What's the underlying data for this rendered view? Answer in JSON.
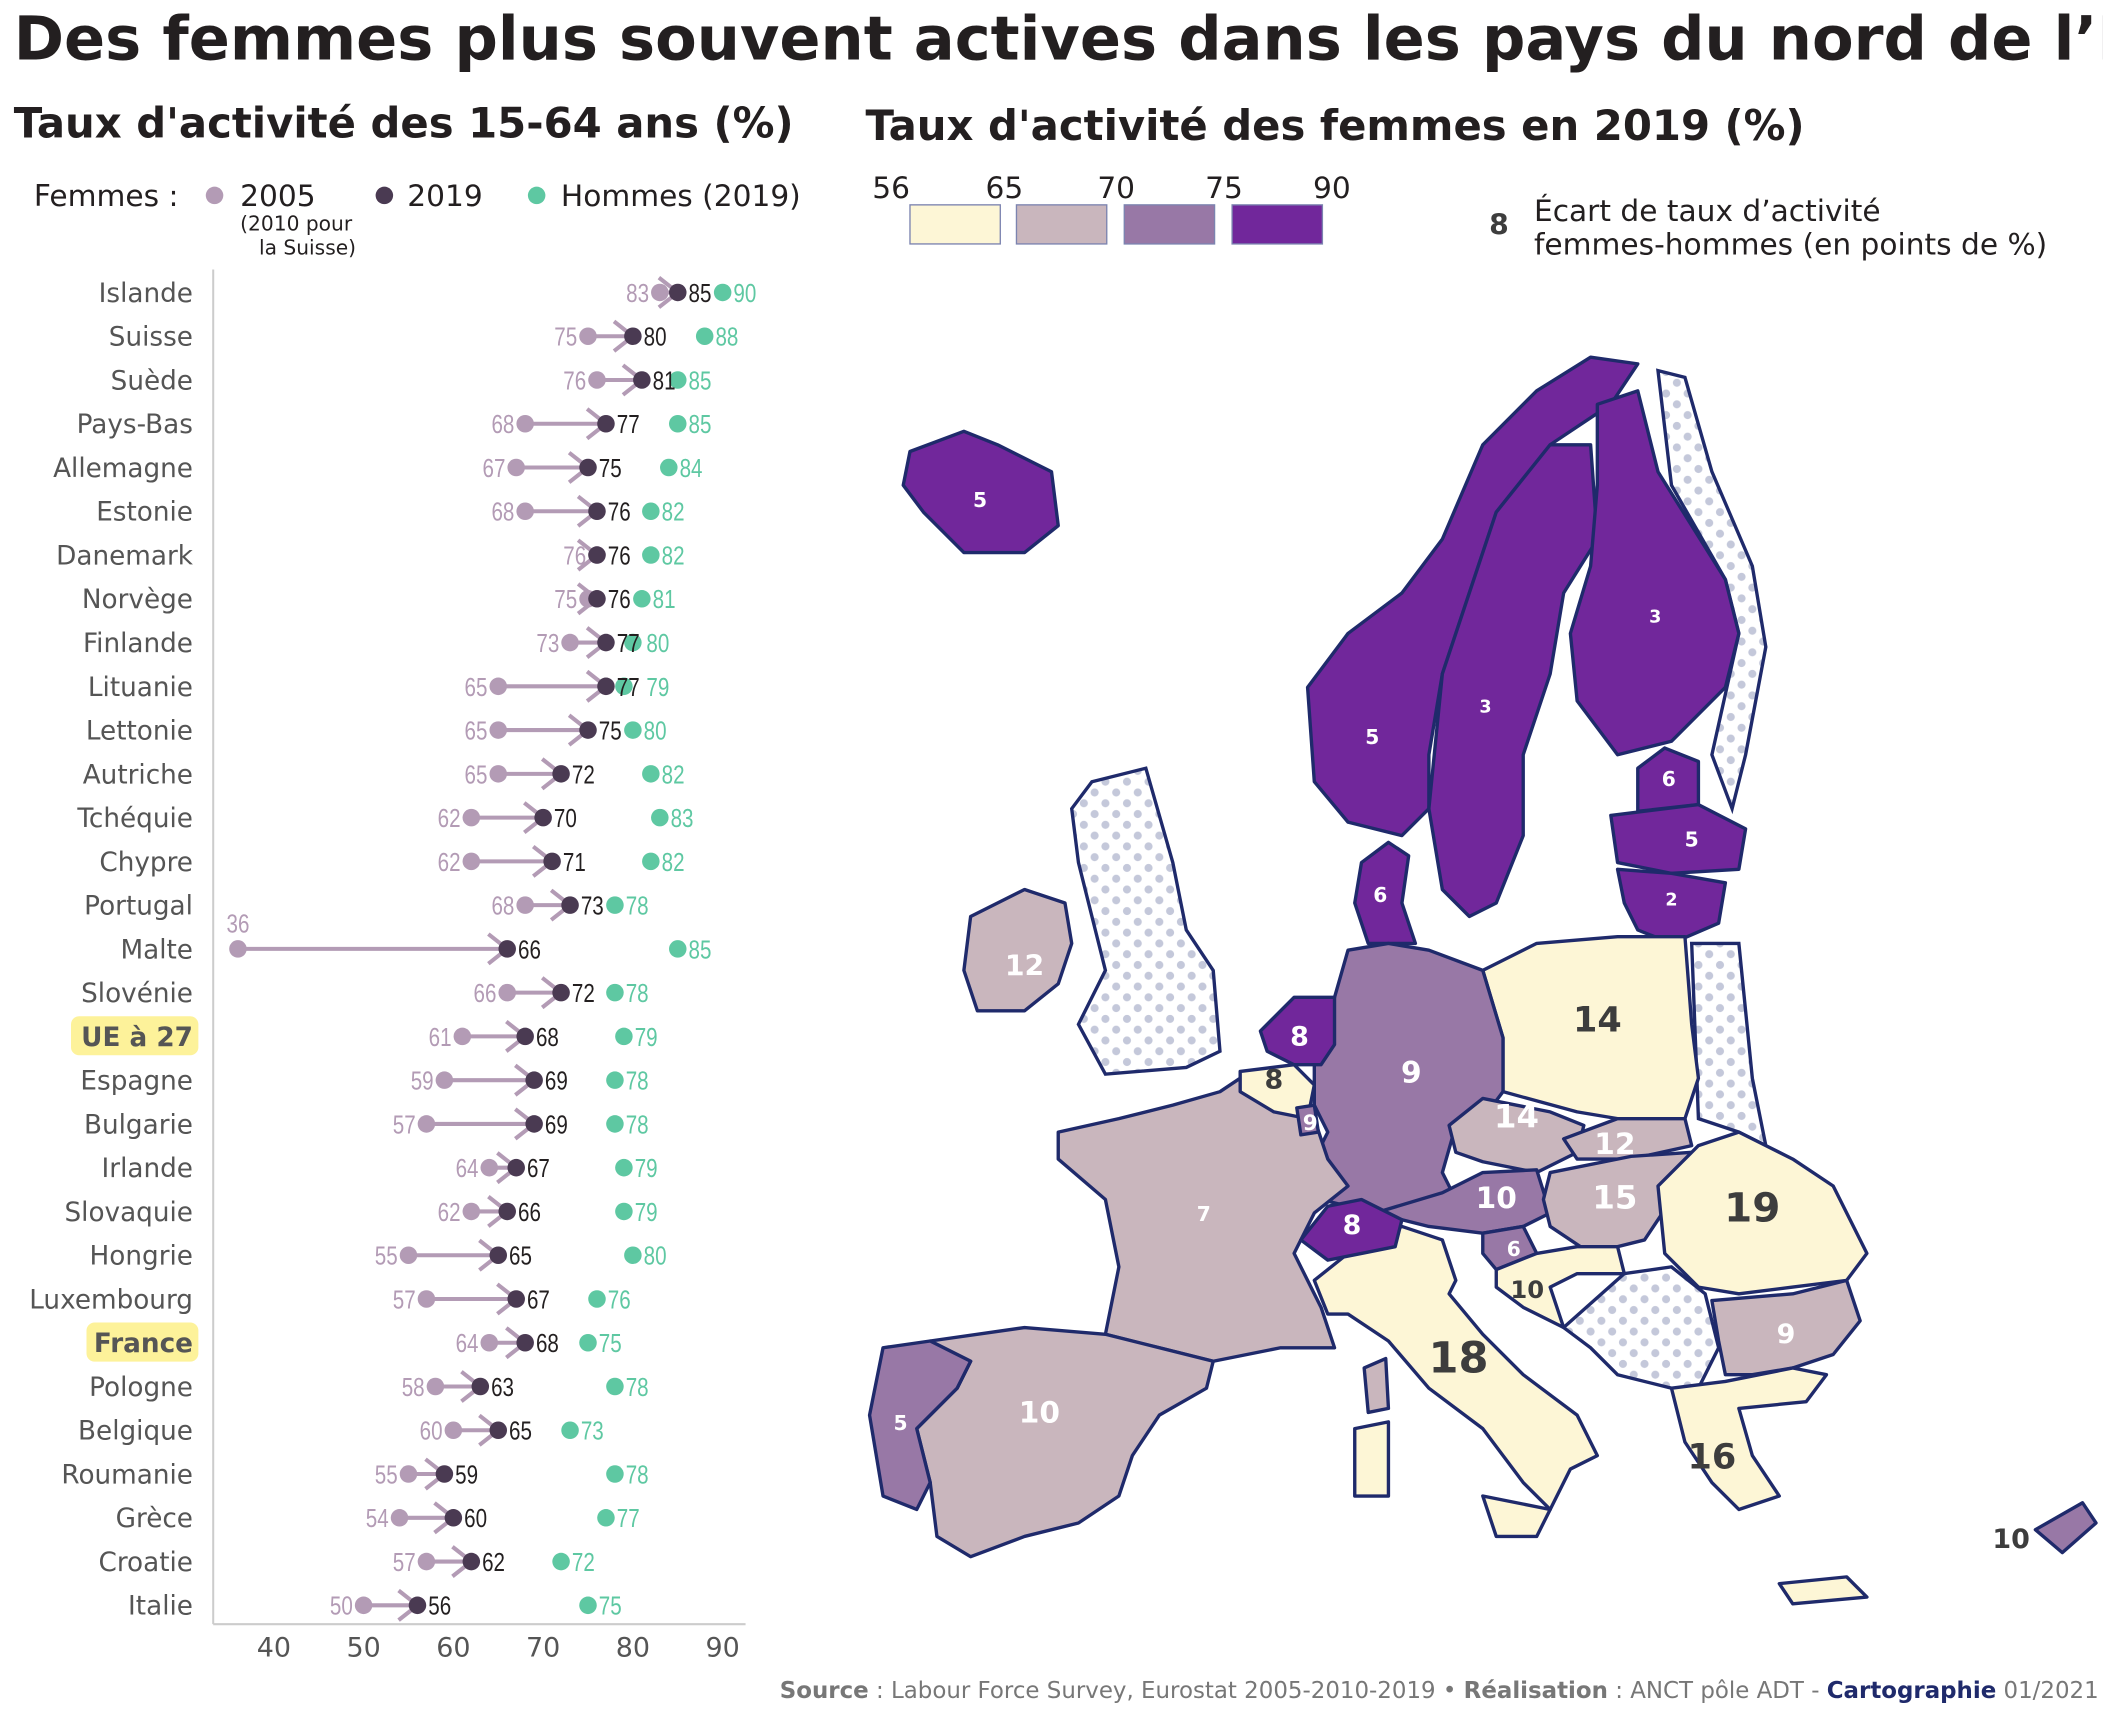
{
  "title": "Des femmes plus souvent actives dans les pays du nord de l’Europe",
  "colors": {
    "w2005": "#b39bb5",
    "w2019": "#4a3a52",
    "men": "#5ec8a2",
    "c1": "#fdf6d6",
    "c2": "#c9b6bd",
    "c3": "#9878a6",
    "c4": "#71279b",
    "border": "#1f2a6b",
    "highlight": "#fdf29a"
  },
  "chart_data": {
    "type": "dumbbell",
    "title": "Taux d'activité des 15-64 ans (%)",
    "legend": {
      "prefix": "Femmes :",
      "w2005": "2005",
      "w2005_note_1": "(2010 pour",
      "w2005_note_2": "la Suisse)",
      "w2019": "2019",
      "men": "Hommes (2019)"
    },
    "xlim": [
      33,
      93
    ],
    "xticks": [
      40,
      50,
      60,
      70,
      80,
      90
    ],
    "rows": [
      {
        "label": "Islande",
        "w2005": 83,
        "w2019": 85,
        "men": 90
      },
      {
        "label": "Suisse",
        "w2005": 75,
        "w2019": 80,
        "men": 88
      },
      {
        "label": "Suède",
        "w2005": 76,
        "w2019": 81,
        "men": 85
      },
      {
        "label": "Pays-Bas",
        "w2005": 68,
        "w2019": 77,
        "men": 85
      },
      {
        "label": "Allemagne",
        "w2005": 67,
        "w2019": 75,
        "men": 84
      },
      {
        "label": "Estonie",
        "w2005": 68,
        "w2019": 76,
        "men": 82
      },
      {
        "label": "Danemark",
        "w2005": 76,
        "w2019": 76,
        "men": 82
      },
      {
        "label": "Norvège",
        "w2005": 75,
        "w2019": 76,
        "men": 81
      },
      {
        "label": "Finlande",
        "w2005": 73,
        "w2019": 77,
        "men": 80
      },
      {
        "label": "Lituanie",
        "w2005": 65,
        "w2019": 77,
        "men": 79
      },
      {
        "label": "Lettonie",
        "w2005": 65,
        "w2019": 75,
        "men": 80
      },
      {
        "label": "Autriche",
        "w2005": 65,
        "w2019": 72,
        "men": 82
      },
      {
        "label": "Tchéquie",
        "w2005": 62,
        "w2019": 70,
        "men": 83
      },
      {
        "label": "Chypre",
        "w2005": 62,
        "w2019": 71,
        "men": 82
      },
      {
        "label": "Portugal",
        "w2005": 68,
        "w2019": 73,
        "men": 78
      },
      {
        "label": "Malte",
        "w2005": 36,
        "w2019": 66,
        "men": 85
      },
      {
        "label": "Slovénie",
        "w2005": 66,
        "w2019": 72,
        "men": 78
      },
      {
        "label": "UE à 27",
        "w2005": 61,
        "w2019": 68,
        "men": 79,
        "highlight": true
      },
      {
        "label": "Espagne",
        "w2005": 59,
        "w2019": 69,
        "men": 78
      },
      {
        "label": "Bulgarie",
        "w2005": 57,
        "w2019": 69,
        "men": 78
      },
      {
        "label": "Irlande",
        "w2005": 64,
        "w2019": 67,
        "men": 79
      },
      {
        "label": "Slovaquie",
        "w2005": 62,
        "w2019": 66,
        "men": 79
      },
      {
        "label": "Hongrie",
        "w2005": 55,
        "w2019": 65,
        "men": 80
      },
      {
        "label": "Luxembourg",
        "w2005": 57,
        "w2019": 67,
        "men": 76
      },
      {
        "label": "France",
        "w2005": 64,
        "w2019": 68,
        "men": 75,
        "highlight": true
      },
      {
        "label": "Pologne",
        "w2005": 58,
        "w2019": 63,
        "men": 78
      },
      {
        "label": "Belgique",
        "w2005": 60,
        "w2019": 65,
        "men": 73
      },
      {
        "label": "Roumanie",
        "w2005": 55,
        "w2019": 59,
        "men": 78
      },
      {
        "label": "Grèce",
        "w2005": 54,
        "w2019": 60,
        "men": 77
      },
      {
        "label": "Croatie",
        "w2005": 57,
        "w2019": 62,
        "men": 72
      },
      {
        "label": "Italie",
        "w2005": 50,
        "w2019": 56,
        "men": 75
      }
    ]
  },
  "map": {
    "title": "Taux d'activité des femmes en 2019 (%)",
    "legend_breaks": [
      "56",
      "65",
      "70",
      "75",
      "90"
    ],
    "gap_legend_example": "8",
    "gap_legend_line1": "Écart de taux d’activité",
    "gap_legend_line2": "femmes-hommes (en points de %)",
    "gaps": {
      "islande": "5",
      "norvege": "5",
      "suede": "3",
      "finlande": "3",
      "estonie": "6",
      "lettonie": "5",
      "lituanie": "2",
      "danemark": "6",
      "irlande": "12",
      "paysbas": "8",
      "belgique": "8",
      "luxembourg": "9",
      "allemagne": "9",
      "pologne": "14",
      "tchequie": "14",
      "slovaquie": "12",
      "autriche": "10",
      "hongrie": "15",
      "roumanie": "19",
      "suisse": "8",
      "slovenie": "6",
      "croatie": "10",
      "france": "7",
      "italie": "18",
      "bulgarie": "9",
      "espagne": "10",
      "portugal": "5",
      "grece": "16",
      "chypre": "10"
    }
  },
  "source": {
    "source_label": "Source",
    "source_text": " : Labour Force Survey, Eurostat 2005-2010-2019 • ",
    "realisation_label": "Réalisation",
    "realisation_text": " : ANCT pôle ADT - ",
    "carto_label": "Cartographie",
    "carto_date": " 01/2021"
  }
}
